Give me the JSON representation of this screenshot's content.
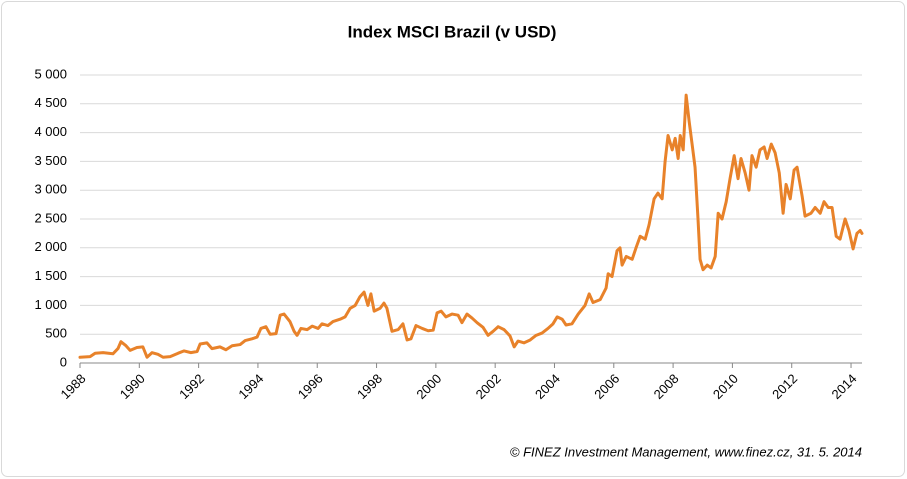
{
  "chart_data": {
    "type": "line",
    "title": "Index MSCI Brazil (v USD)",
    "source": "© FINEZ Investment Management, www.finez.cz, 31. 5. 2014",
    "x": [
      1988.0,
      1988.34,
      1988.51,
      1988.78,
      1989.11,
      1989.28,
      1989.38,
      1989.55,
      1989.69,
      1989.92,
      1990.12,
      1990.26,
      1990.43,
      1990.63,
      1990.8,
      1991.04,
      1991.31,
      1991.51,
      1991.74,
      1991.95,
      1992.05,
      1992.28,
      1992.45,
      1992.72,
      1992.92,
      1993.13,
      1993.4,
      1993.57,
      1993.8,
      1993.97,
      1994.1,
      1994.27,
      1994.41,
      1994.61,
      1994.75,
      1994.88,
      1995.08,
      1995.22,
      1995.32,
      1995.45,
      1995.66,
      1995.83,
      1996.03,
      1996.16,
      1996.36,
      1996.53,
      1996.77,
      1996.94,
      1997.11,
      1997.28,
      1997.44,
      1997.58,
      1997.71,
      1997.81,
      1997.92,
      1998.12,
      1998.25,
      1998.35,
      1998.52,
      1998.73,
      1998.89,
      1999.03,
      1999.16,
      1999.33,
      1999.54,
      1999.74,
      1999.91,
      2000.04,
      2000.18,
      2000.34,
      2000.55,
      2000.75,
      2000.88,
      2001.05,
      2001.22,
      2001.39,
      2001.59,
      2001.76,
      2001.93,
      2002.1,
      2002.3,
      2002.5,
      2002.64,
      2002.77,
      2002.97,
      2003.18,
      2003.38,
      2003.58,
      2003.78,
      2003.95,
      2004.09,
      2004.26,
      2004.39,
      2004.59,
      2004.8,
      2005.03,
      2005.17,
      2005.3,
      2005.54,
      2005.74,
      2005.81,
      2005.94,
      2006.11,
      2006.21,
      2006.28,
      2006.42,
      2006.62,
      2006.75,
      2006.89,
      2007.06,
      2007.19,
      2007.36,
      2007.49,
      2007.63,
      2007.73,
      2007.83,
      2007.97,
      2008.07,
      2008.17,
      2008.24,
      2008.34,
      2008.44,
      2008.54,
      2008.64,
      2008.74,
      2008.84,
      2008.91,
      2009.01,
      2009.15,
      2009.28,
      2009.42,
      2009.52,
      2009.65,
      2009.79,
      2009.92,
      2010.06,
      2010.19,
      2010.29,
      2010.43,
      2010.56,
      2010.66,
      2010.8,
      2010.93,
      2011.07,
      2011.17,
      2011.31,
      2011.44,
      2011.58,
      2011.71,
      2011.81,
      2011.95,
      2012.08,
      2012.18,
      2012.35,
      2012.45,
      2012.65,
      2012.79,
      2012.96,
      2013.09,
      2013.23,
      2013.36,
      2013.5,
      2013.63,
      2013.8,
      2013.93,
      2014.07,
      2014.2,
      2014.31,
      2014.37
    ],
    "values": [
      100,
      110,
      170,
      180,
      160,
      250,
      370,
      300,
      220,
      270,
      280,
      100,
      180,
      150,
      100,
      110,
      170,
      210,
      180,
      200,
      330,
      350,
      250,
      280,
      230,
      300,
      320,
      390,
      420,
      450,
      600,
      630,
      500,
      510,
      830,
      850,
      720,
      550,
      480,
      600,
      580,
      640,
      600,
      680,
      650,
      720,
      760,
      800,
      950,
      1000,
      1150,
      1230,
      1000,
      1200,
      900,
      950,
      1040,
      950,
      550,
      580,
      680,
      400,
      420,
      650,
      600,
      560,
      570,
      870,
      900,
      800,
      850,
      830,
      700,
      850,
      780,
      700,
      620,
      480,
      550,
      630,
      580,
      470,
      280,
      380,
      350,
      400,
      480,
      520,
      600,
      680,
      800,
      760,
      660,
      680,
      850,
      1000,
      1200,
      1050,
      1100,
      1300,
      1550,
      1500,
      1950,
      2000,
      1700,
      1850,
      1800,
      2000,
      2200,
      2150,
      2400,
      2850,
      2950,
      2850,
      3500,
      3950,
      3700,
      3900,
      3550,
      3950,
      3700,
      4650,
      4200,
      3800,
      3400,
      2500,
      1800,
      1620,
      1700,
      1650,
      1850,
      2600,
      2500,
      2800,
      3200,
      3600,
      3200,
      3550,
      3300,
      3000,
      3600,
      3400,
      3700,
      3750,
      3550,
      3800,
      3650,
      3300,
      2600,
      3100,
      2850,
      3350,
      3400,
      2900,
      2550,
      2600,
      2700,
      2600,
      2800,
      2700,
      2700,
      2200,
      2150,
      2500,
      2300,
      1980,
      2250,
      2300,
      2250
    ],
    "color": "#e8822a",
    "xlim": [
      1988,
      2014.37
    ],
    "xticks": [
      1988,
      1990,
      1992,
      1994,
      1996,
      1998,
      2000,
      2002,
      2004,
      2006,
      2008,
      2010,
      2012,
      2014
    ],
    "ylim": [
      0,
      5000
    ],
    "yticks": [
      0,
      500,
      {
        "value": 1000,
        "label": "1 000"
      },
      {
        "value": 1500,
        "label": "1 500"
      },
      {
        "value": 2000,
        "label": "2 000"
      },
      {
        "value": 2500,
        "label": "2 500"
      },
      {
        "value": 3000,
        "label": "3 000"
      },
      {
        "value": 3500,
        "label": "3 500"
      },
      {
        "value": 4000,
        "label": "4 000"
      },
      {
        "value": 4500,
        "label": "4 500"
      },
      {
        "value": 5000,
        "label": "5 000"
      }
    ],
    "grid": true
  }
}
